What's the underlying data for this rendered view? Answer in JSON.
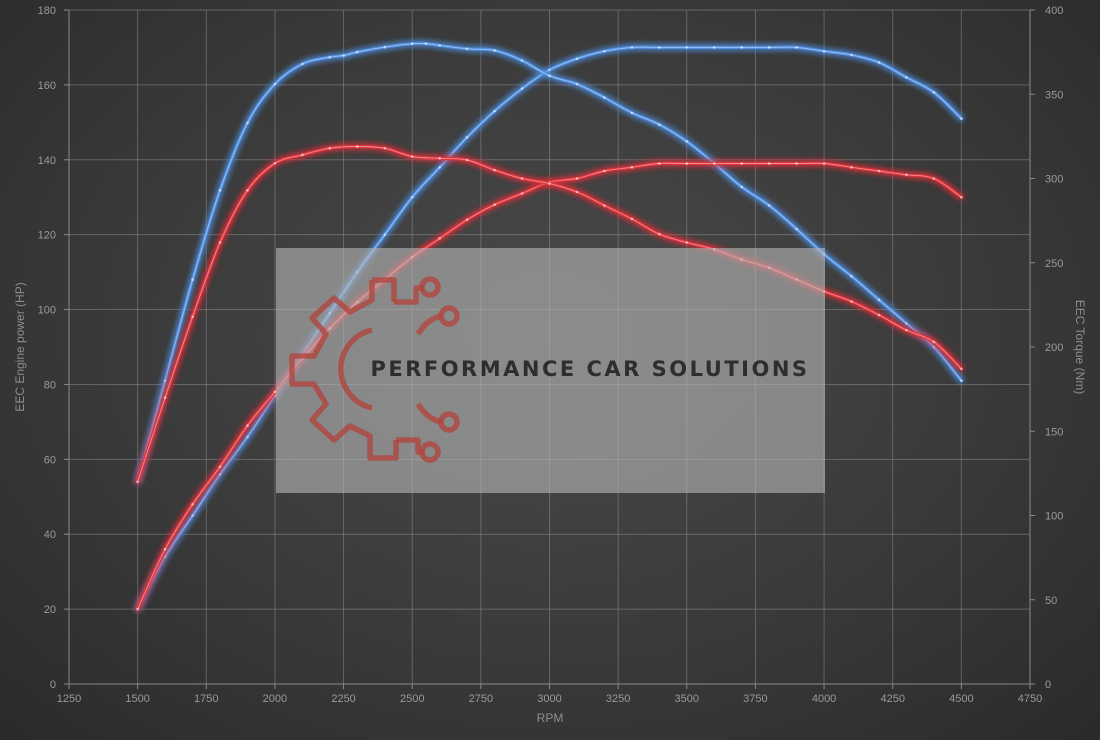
{
  "chart_data": {
    "type": "line",
    "title": "",
    "xlabel": "RPM",
    "ylabel_left": "EEC Engine power (HP)",
    "ylabel_right": "EEC Torque (Nm)",
    "xlim": [
      1250,
      4750
    ],
    "ylim_left": [
      0,
      180
    ],
    "ylim_right": [
      0,
      400
    ],
    "x_ticks": [
      1250,
      1500,
      1750,
      2000,
      2250,
      2500,
      2750,
      3000,
      3250,
      3500,
      3750,
      4000,
      4250,
      4500,
      4750
    ],
    "y_ticks_left": [
      0,
      20,
      40,
      60,
      80,
      100,
      120,
      140,
      160,
      180
    ],
    "y_ticks_right": [
      0,
      50,
      100,
      150,
      200,
      250,
      300,
      350,
      400
    ],
    "grid": true,
    "series": [
      {
        "color": "#4f8fe0",
        "axis": "left",
        "x": [
          1500,
          1600,
          1700,
          1800,
          1900,
          2000,
          2100,
          2200,
          2300,
          2400,
          2500,
          2600,
          2700,
          2800,
          2900,
          3000,
          3100,
          3200,
          3300,
          3400,
          3500,
          3600,
          3700,
          3800,
          3900,
          4000,
          4100,
          4200,
          4300,
          4400,
          4500
        ],
        "values": [
          20,
          34,
          45,
          56,
          66,
          77,
          88,
          99,
          110,
          120,
          130,
          138,
          146,
          153,
          159,
          164,
          167,
          169,
          170,
          170,
          170,
          170,
          170,
          170,
          170,
          169,
          168,
          166,
          162,
          158,
          151
        ]
      },
      {
        "color": "#4f8fe0",
        "axis": "right",
        "x": [
          1500,
          1600,
          1700,
          1800,
          1900,
          2000,
          2100,
          2200,
          2250,
          2300,
          2400,
          2500,
          2550,
          2600,
          2700,
          2800,
          2900,
          3000,
          3100,
          3200,
          3300,
          3400,
          3500,
          3600,
          3700,
          3800,
          3900,
          4000,
          4100,
          4200,
          4300,
          4400,
          4500
        ],
        "values": [
          120,
          180,
          240,
          293,
          333,
          356,
          368,
          372,
          373,
          375,
          378,
          380,
          380,
          379,
          377,
          376,
          370,
          361,
          356,
          348,
          339,
          332,
          322,
          309,
          295,
          284,
          270,
          255,
          242,
          228,
          214,
          200,
          180
        ]
      },
      {
        "color": "#e0333a",
        "axis": "left",
        "x": [
          1500,
          1600,
          1700,
          1800,
          1900,
          2000,
          2100,
          2200,
          2300,
          2400,
          2500,
          2600,
          2700,
          2800,
          2900,
          3000,
          3100,
          3200,
          3300,
          3400,
          3500,
          3600,
          3700,
          3800,
          3900,
          4000,
          4100,
          4200,
          4300,
          4400,
          4500
        ],
        "values": [
          20,
          36,
          48,
          58,
          69,
          78,
          87,
          95,
          102,
          108,
          114,
          119,
          124,
          128,
          131,
          134,
          135,
          137,
          138,
          139,
          139,
          139,
          139,
          139,
          139,
          139,
          138,
          137,
          136,
          135,
          130
        ]
      },
      {
        "color": "#e0333a",
        "axis": "right",
        "x": [
          1500,
          1600,
          1700,
          1800,
          1900,
          2000,
          2100,
          2200,
          2300,
          2400,
          2500,
          2600,
          2700,
          2800,
          2900,
          3000,
          3100,
          3200,
          3300,
          3400,
          3500,
          3600,
          3700,
          3800,
          3900,
          4000,
          4100,
          4200,
          4300,
          4400,
          4500
        ],
        "values": [
          120,
          170,
          218,
          262,
          293,
          309,
          314,
          318,
          319,
          318,
          313,
          312,
          311,
          305,
          300,
          297,
          292,
          284,
          276,
          267,
          262,
          258,
          252,
          247,
          240,
          233,
          227,
          219,
          210,
          203,
          187
        ]
      }
    ]
  },
  "watermark": {
    "text": "PERFORMANCE CAR SOLUTIONS",
    "logo_icon": "gear-circuit-logo-icon"
  }
}
